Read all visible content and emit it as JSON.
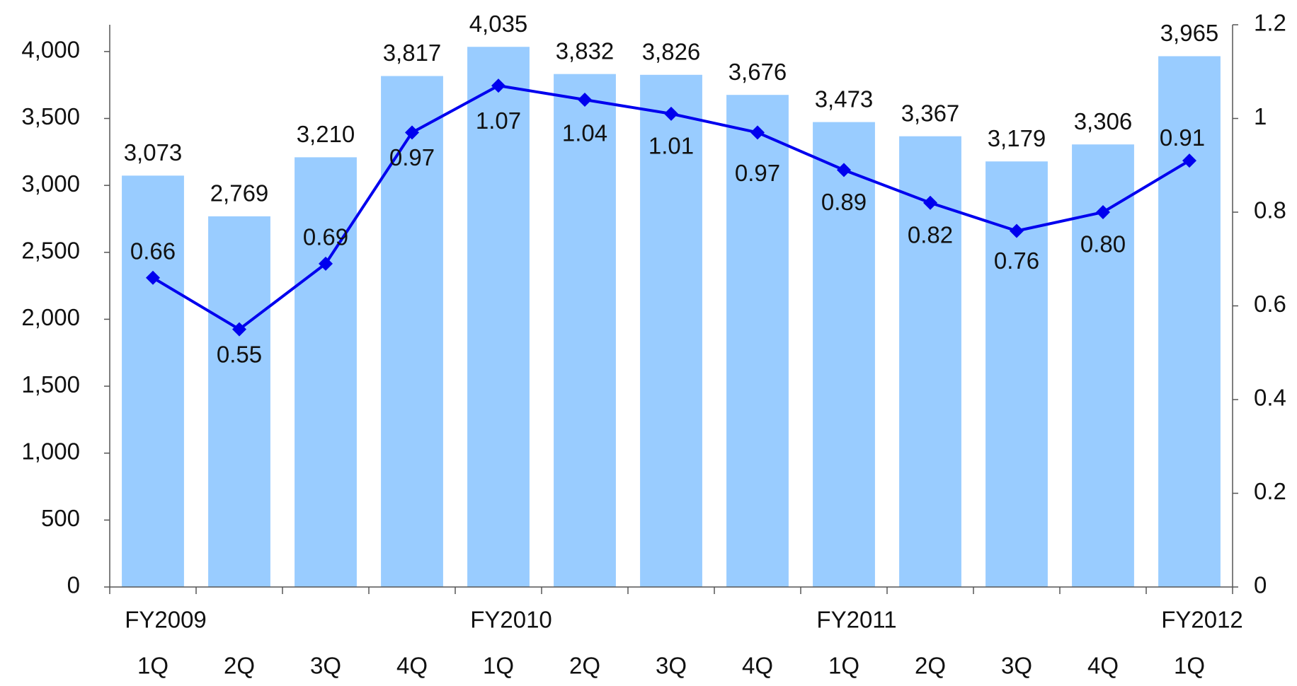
{
  "chart_data": {
    "type": "bar",
    "categories": [
      "1Q",
      "2Q",
      "3Q",
      "4Q",
      "1Q",
      "2Q",
      "3Q",
      "4Q",
      "1Q",
      "2Q",
      "3Q",
      "4Q",
      "1Q"
    ],
    "category_groups": [
      "FY2009",
      null,
      null,
      null,
      "FY2010",
      null,
      null,
      null,
      "FY2011",
      null,
      null,
      null,
      "FY2012"
    ],
    "series": [
      {
        "type": "bar",
        "color": "#99ccff",
        "values": [
          3073,
          2769,
          3210,
          3817,
          4035,
          3832,
          3826,
          3676,
          3473,
          3367,
          3179,
          3306,
          3965
        ],
        "value_labels": [
          "3,073",
          "2,769",
          "3,210",
          "3,817",
          "4,035",
          "3,832",
          "3,826",
          "3,676",
          "3,473",
          "3,367",
          "3,179",
          "3,306",
          "3,965"
        ]
      },
      {
        "type": "line",
        "axis": "y2",
        "color": "#0000ee",
        "values": [
          0.66,
          0.55,
          0.69,
          0.97,
          1.07,
          1.04,
          1.01,
          0.97,
          0.89,
          0.82,
          0.76,
          0.8,
          0.91
        ],
        "value_labels": [
          "0.66",
          "0.55",
          "0.69",
          "0.97",
          "1.07",
          "1.04",
          "1.01",
          "0.97",
          "0.89",
          "0.82",
          "0.76",
          "0.80",
          "0.91"
        ]
      }
    ],
    "ylim": [
      0,
      4200
    ],
    "yticks": [
      0,
      500,
      {
        "value": 1000,
        "label": "1,000"
      },
      {
        "value": 1500,
        "label": "1,500"
      },
      {
        "value": 2000,
        "label": "2,000"
      },
      {
        "value": 2500,
        "label": "2,500"
      },
      {
        "value": 3000,
        "label": "3,000"
      },
      {
        "value": 3500,
        "label": "3,500"
      },
      {
        "value": 4000,
        "label": "4,000"
      }
    ],
    "y2lim": [
      0,
      1.2
    ],
    "y2ticks": [
      0,
      0.2,
      0.4,
      0.6,
      0.8,
      1,
      1.2
    ],
    "grid": false
  }
}
